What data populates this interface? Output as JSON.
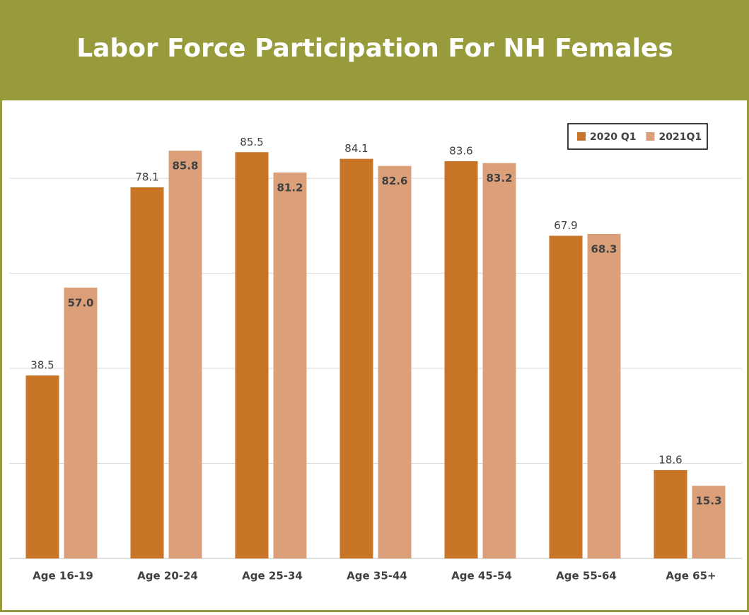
{
  "chart_data": {
    "type": "bar",
    "title": "Labor Force Participation For NH Females",
    "categories": [
      "Age 16-19",
      "Age 20-24",
      "Age 25-34",
      "Age 35-44",
      "Age 45-54",
      "Age 55-64",
      "Age 65+"
    ],
    "series": [
      {
        "name": "2020 Q1",
        "color": "#c87528",
        "values": [
          38.5,
          78.1,
          85.5,
          84.1,
          83.6,
          67.9,
          18.6
        ]
      },
      {
        "name": "2021Q1",
        "color": "#dba07a",
        "values": [
          57,
          85.8,
          81.2,
          82.6,
          83.2,
          68.3,
          15.3
        ],
        "value_labels": [
          "57.0",
          "85.8",
          "81.2",
          "82.6",
          "83.2",
          "68.3",
          "15.3"
        ]
      }
    ],
    "ylim": [
      0,
      90
    ],
    "yticks": [
      0,
      20,
      40,
      60,
      80
    ],
    "grid": true,
    "legend": "top-right"
  }
}
